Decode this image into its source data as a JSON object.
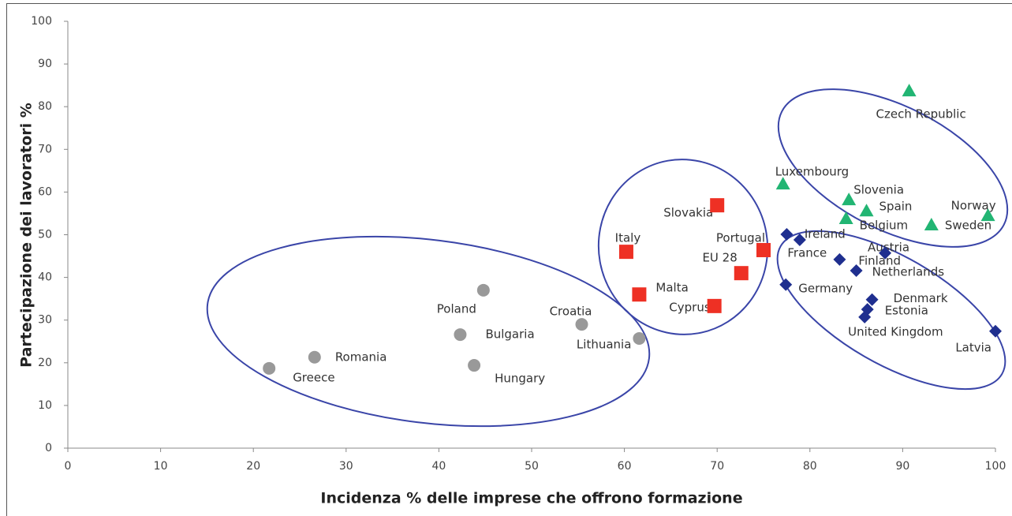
{
  "chart_data": {
    "type": "scatter",
    "x_label": "Incidenza % delle imprese che offrono formazione",
    "y_label": "Partecipazione dei lavoratori %",
    "xlim": [
      0,
      100
    ],
    "ylim": [
      0,
      100
    ],
    "xticks": [
      0,
      10,
      20,
      30,
      40,
      50,
      60,
      70,
      80,
      90,
      100
    ],
    "yticks": [
      0,
      10,
      20,
      30,
      40,
      50,
      60,
      70,
      80,
      90,
      100
    ],
    "grid": false,
    "series": [
      {
        "color": "#999999",
        "marker": "circle",
        "labels": [
          "Greece",
          "Romania",
          "Bulgaria",
          "Poland",
          "Hungary",
          "Croatia",
          "Lithuania"
        ],
        "x": [
          21.7,
          26.6,
          42.3,
          44.8,
          43.8,
          55.4,
          61.6
        ],
        "values": [
          18.7,
          21.3,
          26.6,
          37.0,
          19.4,
          29.0,
          25.7
        ]
      },
      {
        "color": "#ee3024",
        "marker": "square",
        "labels": [
          "Italy",
          "Malta",
          "Slovakia",
          "Cyprus",
          "EU 28",
          "Portugal"
        ],
        "x": [
          60.2,
          61.6,
          70.0,
          69.7,
          72.6,
          75.0
        ],
        "values": [
          46.0,
          36.0,
          56.9,
          33.3,
          41.0,
          46.4
        ]
      },
      {
        "color": "#22b573",
        "marker": "triangle",
        "labels": [
          "Czech Republic",
          "Luxembourg",
          "Slovenia",
          "Spain",
          "Belgium",
          "Sweden",
          "Norway"
        ],
        "x": [
          90.7,
          77.1,
          84.2,
          86.1,
          83.9,
          93.1,
          99.2
        ],
        "values": [
          83.7,
          61.9,
          58.2,
          55.6,
          53.8,
          52.3,
          54.5
        ]
      },
      {
        "color": "#1f2f8f",
        "marker": "diamond",
        "labels": [
          "France",
          "Ireland",
          "Austria",
          "Finland",
          "Netherlands",
          "Germany",
          "Denmark",
          "Estonia",
          "United Kingdom",
          "Latvia"
        ],
        "x": [
          77.5,
          78.9,
          88.1,
          83.2,
          85.0,
          77.4,
          86.7,
          86.2,
          85.9,
          100
        ],
        "values": [
          50.1,
          48.8,
          45.7,
          44.2,
          41.6,
          38.3,
          34.8,
          32.5,
          30.7,
          27.4
        ]
      }
    ]
  }
}
